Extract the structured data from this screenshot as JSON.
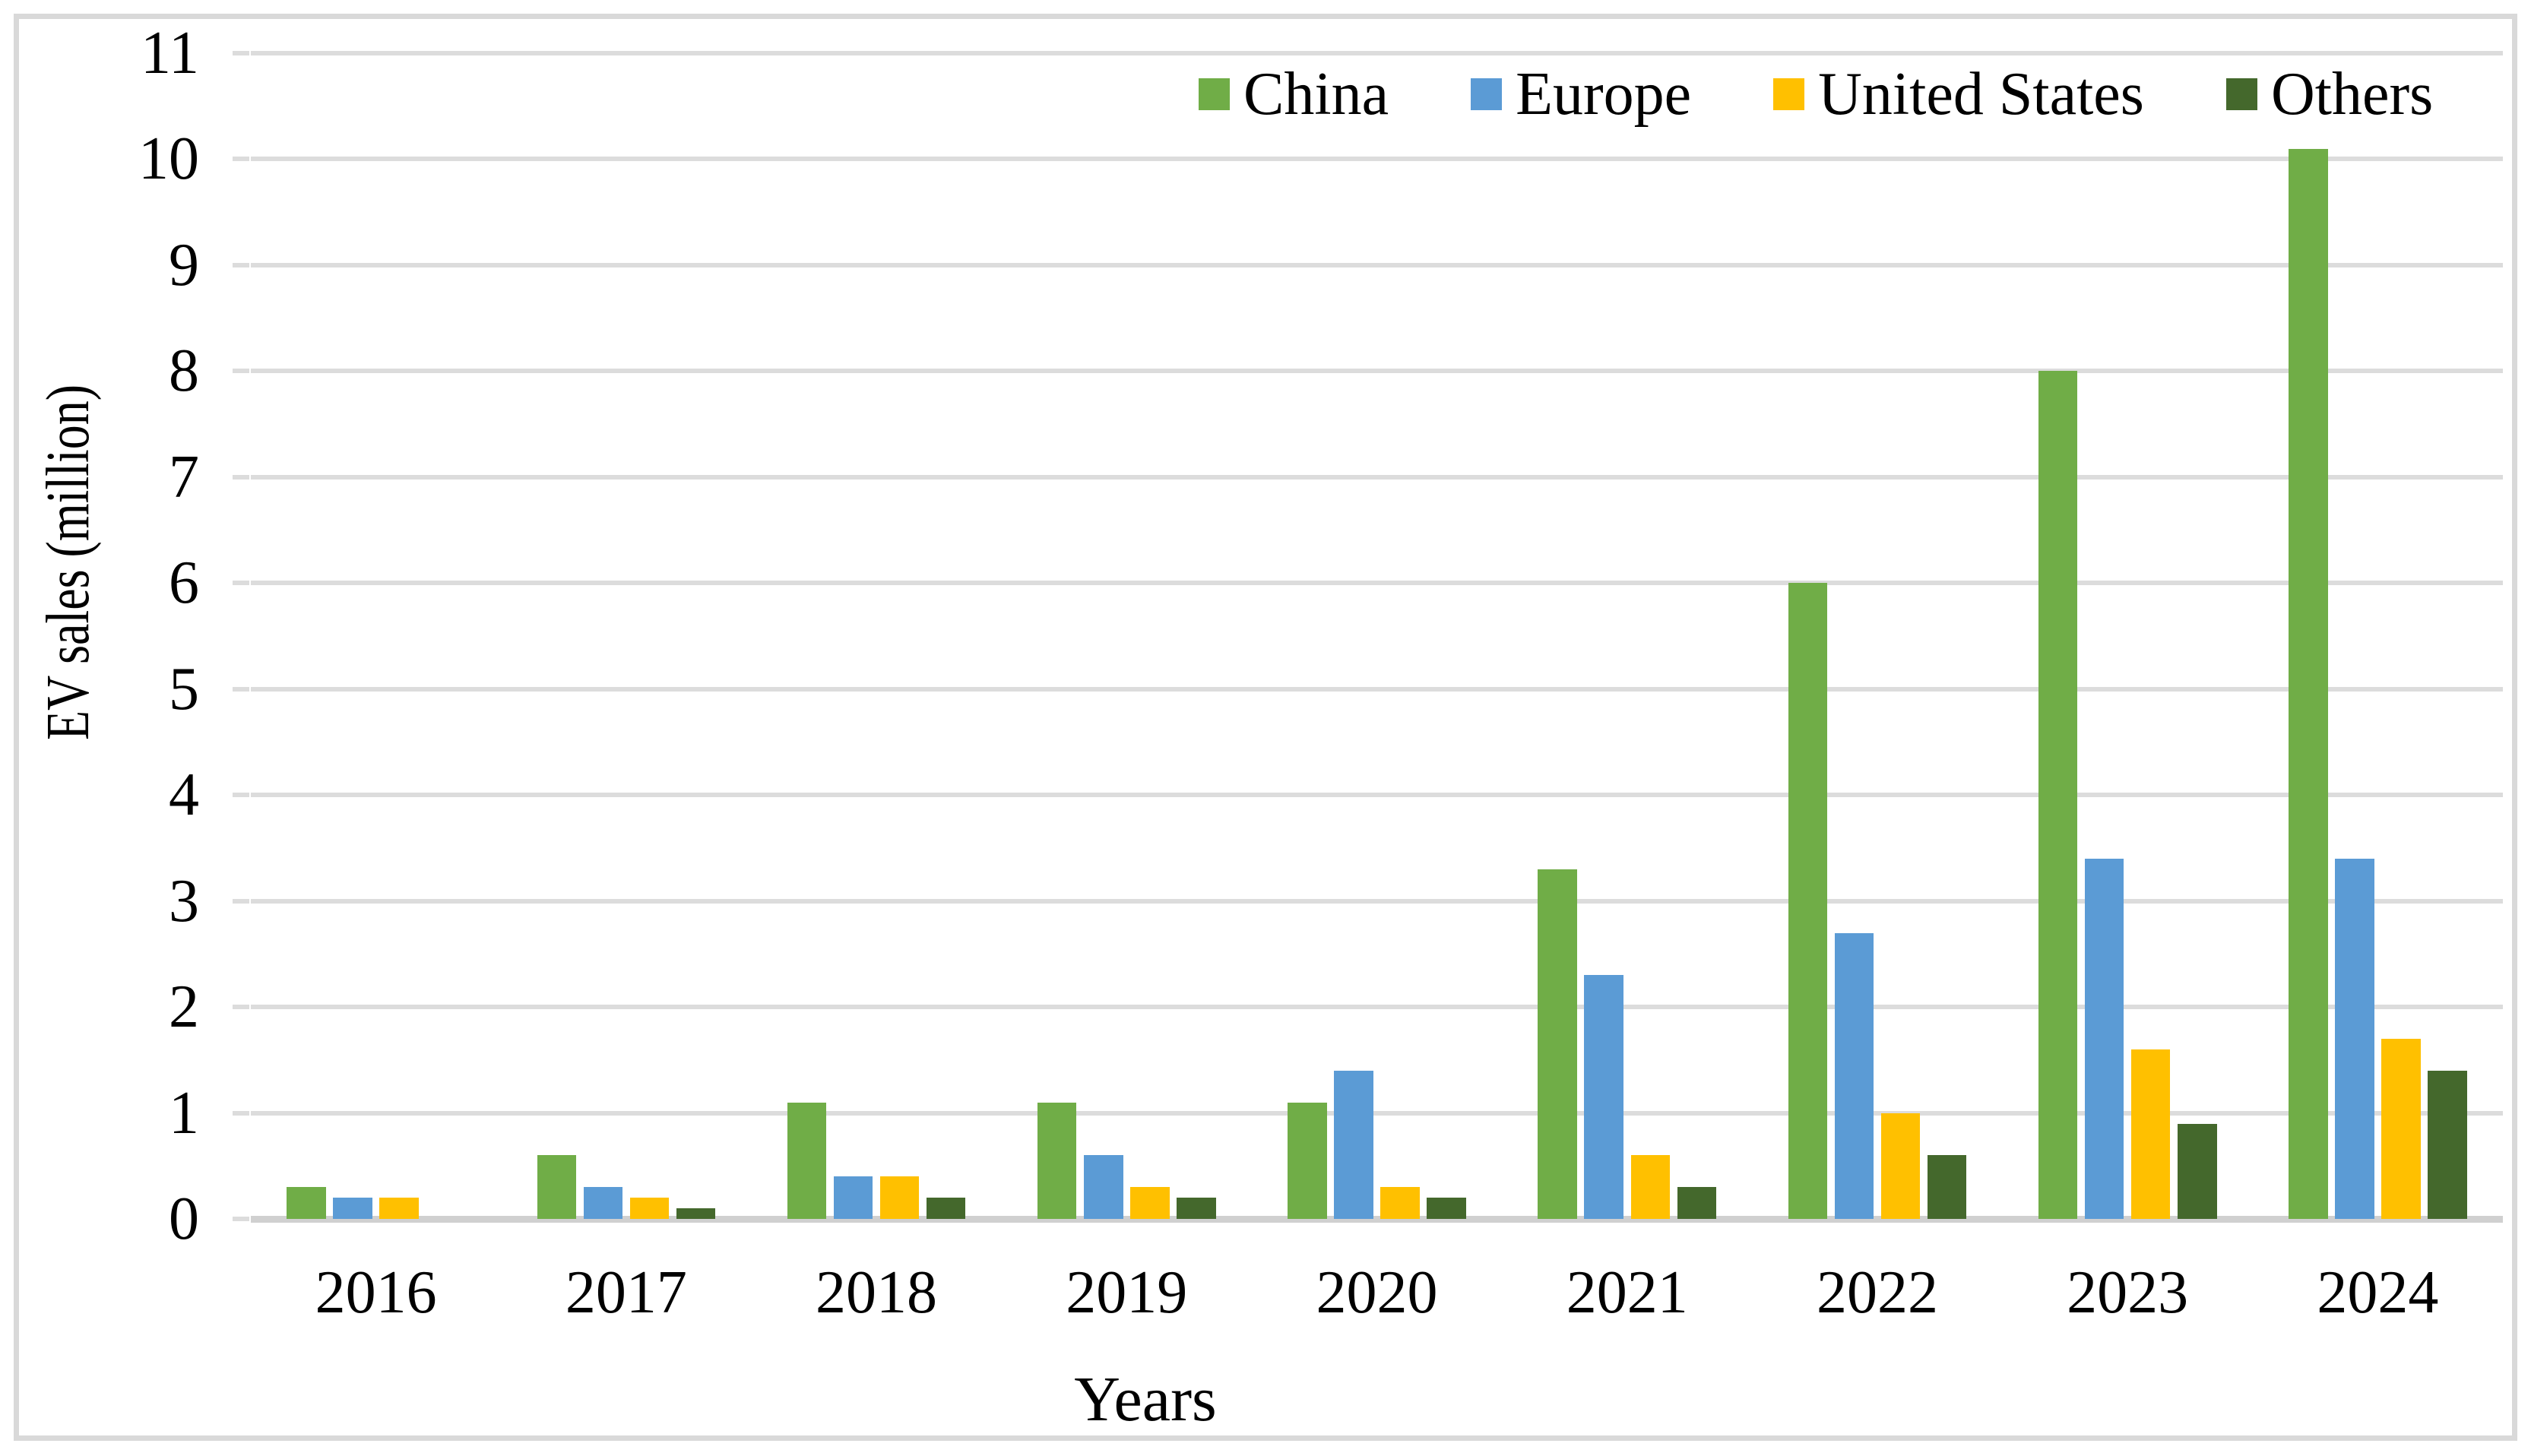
{
  "page": {
    "background": "#ffffff",
    "border_color": "#d9d9d9"
  },
  "chart_data": {
    "type": "bar",
    "title": "",
    "xlabel": "Years",
    "ylabel": "EV sales (million)",
    "categories": [
      "2016",
      "2017",
      "2018",
      "2019",
      "2020",
      "2021",
      "2022",
      "2023",
      "2024"
    ],
    "series": [
      {
        "name": "China",
        "color": "#70ad47",
        "values": [
          0.3,
          0.6,
          1.1,
          1.1,
          1.1,
          3.3,
          6.0,
          8.0,
          10.1
        ]
      },
      {
        "name": "Europe",
        "color": "#5b9bd5",
        "values": [
          0.2,
          0.3,
          0.4,
          0.6,
          1.4,
          2.3,
          2.7,
          3.4,
          3.4
        ]
      },
      {
        "name": "United States",
        "color": "#ffc000",
        "values": [
          0.2,
          0.2,
          0.4,
          0.3,
          0.3,
          0.6,
          1.0,
          1.6,
          1.7
        ]
      },
      {
        "name": "Others",
        "color": "#44682c",
        "values": [
          0.0,
          0.1,
          0.2,
          0.2,
          0.2,
          0.3,
          0.6,
          0.9,
          1.4
        ]
      }
    ],
    "ylim": [
      0,
      11
    ],
    "ytick_step": 1,
    "yticks": [
      "0",
      "1",
      "2",
      "3",
      "4",
      "5",
      "6",
      "7",
      "8",
      "9",
      "10",
      "11"
    ],
    "grid": "horizontal",
    "gridline_color": "#dcdcdc",
    "axisline_color": "#d0d0d0",
    "legend_position": "top-right",
    "legend": [
      "China",
      "Europe",
      "United States",
      "Others"
    ]
  }
}
